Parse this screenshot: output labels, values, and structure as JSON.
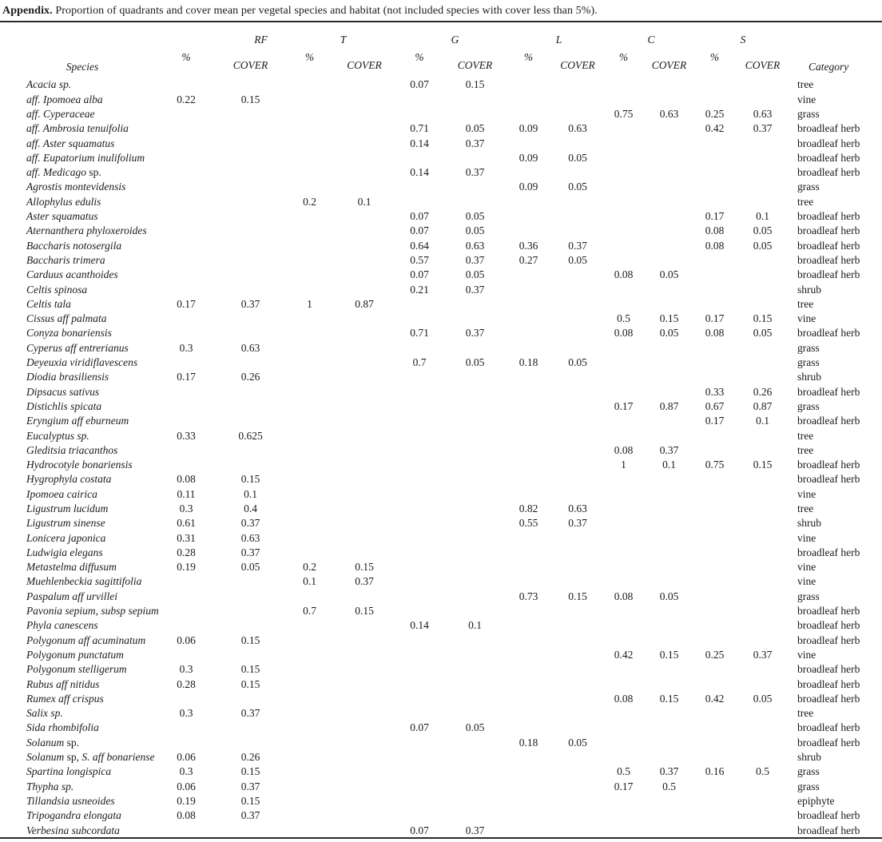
{
  "title": {
    "label": "Appendix.",
    "text": "Proportion of quadrants and cover mean per vegetal species and habitat (not included species with cover less than 5%)."
  },
  "table": {
    "species_header": "Species",
    "category_header": "Category",
    "groups": [
      "RF",
      "T",
      "G",
      "L",
      "C",
      "S"
    ],
    "subheaders": {
      "percent": "%",
      "cover": "COVER"
    },
    "rows": [
      {
        "species": [
          [
            "Acacia sp.",
            "i"
          ]
        ],
        "values": [
          "",
          "",
          "",
          "",
          "0.07",
          "0.15",
          "",
          "",
          "",
          "",
          "",
          ""
        ],
        "category": "tree"
      },
      {
        "species": [
          [
            "aff. Ipomoea alba",
            "i"
          ]
        ],
        "values": [
          "0.22",
          "0.15",
          "",
          "",
          "",
          "",
          "",
          "",
          "",
          "",
          "",
          ""
        ],
        "category": "vine"
      },
      {
        "species": [
          [
            "aff. Cyperaceae",
            "i"
          ]
        ],
        "values": [
          "",
          "",
          "",
          "",
          "",
          "",
          "",
          "",
          "0.75",
          "0.63",
          "0.25",
          "0.63"
        ],
        "category": "grass"
      },
      {
        "species": [
          [
            "aff. Ambrosia tenuifolia",
            "i"
          ]
        ],
        "values": [
          "",
          "",
          "",
          "",
          "0.71",
          "0.05",
          "0.09",
          "0.63",
          "",
          "",
          "0.42",
          "0.37"
        ],
        "category": "broadleaf herb"
      },
      {
        "species": [
          [
            "aff. Aster squamatus",
            "i"
          ]
        ],
        "values": [
          "",
          "",
          "",
          "",
          "0.14",
          "0.37",
          "",
          "",
          "",
          "",
          "",
          ""
        ],
        "category": "broadleaf herb"
      },
      {
        "species": [
          [
            "aff. Eupatorium inulifolium",
            "i"
          ]
        ],
        "values": [
          "",
          "",
          "",
          "",
          "",
          "",
          "0.09",
          "0.05",
          "",
          "",
          "",
          ""
        ],
        "category": "broadleaf herb"
      },
      {
        "species": [
          [
            "aff. Medicago ",
            "i"
          ],
          [
            "sp.",
            "r"
          ]
        ],
        "values": [
          "",
          "",
          "",
          "",
          "0.14",
          "0.37",
          "",
          "",
          "",
          "",
          "",
          ""
        ],
        "category": "broadleaf herb"
      },
      {
        "species": [
          [
            "Agrostis montevidensis",
            "i"
          ]
        ],
        "values": [
          "",
          "",
          "",
          "",
          "",
          "",
          "0.09",
          "0.05",
          "",
          "",
          "",
          ""
        ],
        "category": "grass"
      },
      {
        "species": [
          [
            "Allophylus edulis",
            "i"
          ]
        ],
        "values": [
          "",
          "",
          "0.2",
          "0.1",
          "",
          "",
          "",
          "",
          "",
          "",
          "",
          ""
        ],
        "category": "tree"
      },
      {
        "species": [
          [
            "Aster squamatus",
            "i"
          ]
        ],
        "values": [
          "",
          "",
          "",
          "",
          "0.07",
          "0.05",
          "",
          "",
          "",
          "",
          "0.17",
          "0.1"
        ],
        "category": "broadleaf herb"
      },
      {
        "species": [
          [
            "Aternanthera phyloxeroides",
            "i"
          ]
        ],
        "values": [
          "",
          "",
          "",
          "",
          "0.07",
          "0.05",
          "",
          "",
          "",
          "",
          "0.08",
          "0.05"
        ],
        "category": "broadleaf herb"
      },
      {
        "species": [
          [
            "Baccharis notosergila",
            "i"
          ]
        ],
        "values": [
          "",
          "",
          "",
          "",
          "0.64",
          "0.63",
          "0.36",
          "0.37",
          "",
          "",
          "0.08",
          "0.05"
        ],
        "category": "broadleaf herb"
      },
      {
        "species": [
          [
            "Baccharis trimera",
            "i"
          ]
        ],
        "values": [
          "",
          "",
          "",
          "",
          "0.57",
          "0.37",
          "0.27",
          "0.05",
          "",
          "",
          "",
          ""
        ],
        "category": "broadleaf herb"
      },
      {
        "species": [
          [
            "Carduus acanthoides",
            "i"
          ]
        ],
        "values": [
          "",
          "",
          "",
          "",
          "0.07",
          "0.05",
          "",
          "",
          "0.08",
          "0.05",
          "",
          ""
        ],
        "category": "broadleaf herb"
      },
      {
        "species": [
          [
            "Celtis spinosa",
            "i"
          ]
        ],
        "values": [
          "",
          "",
          "",
          "",
          "0.21",
          "0.37",
          "",
          "",
          "",
          "",
          "",
          ""
        ],
        "category": "shrub"
      },
      {
        "species": [
          [
            "Celtis tala",
            "i"
          ]
        ],
        "values": [
          "0.17",
          "0.37",
          "1",
          "0.87",
          "",
          "",
          "",
          "",
          "",
          "",
          "",
          ""
        ],
        "category": "tree"
      },
      {
        "species": [
          [
            "Cissus aff palmata",
            "i"
          ]
        ],
        "values": [
          "",
          "",
          "",
          "",
          "",
          "",
          "",
          "",
          "0.5",
          "0.15",
          "0.17",
          "0.15"
        ],
        "category": "vine"
      },
      {
        "species": [
          [
            "Conyza bonariensis",
            "i"
          ]
        ],
        "values": [
          "",
          "",
          "",
          "",
          "0.71",
          "0.37",
          "",
          "",
          "0.08",
          "0.05",
          "0.08",
          "0.05"
        ],
        "category": "broadleaf herb"
      },
      {
        "species": [
          [
            "Cyperus aff entrerianus",
            "i"
          ]
        ],
        "values": [
          "0.3",
          "0.63",
          "",
          "",
          "",
          "",
          "",
          "",
          "",
          "",
          "",
          ""
        ],
        "category": "grass"
      },
      {
        "species": [
          [
            "Deyeuxia viridiflavescens",
            "i"
          ]
        ],
        "values": [
          "",
          "",
          "",
          "",
          "0.7",
          "0.05",
          "0.18",
          "0.05",
          "",
          "",
          "",
          ""
        ],
        "category": "grass"
      },
      {
        "species": [
          [
            "Diodia brasiliensis",
            "i"
          ]
        ],
        "values": [
          "0.17",
          "0.26",
          "",
          "",
          "",
          "",
          "",
          "",
          "",
          "",
          "",
          ""
        ],
        "category": "shrub"
      },
      {
        "species": [
          [
            "Dipsacus sativus",
            "i"
          ]
        ],
        "values": [
          "",
          "",
          "",
          "",
          "",
          "",
          "",
          "",
          "",
          "",
          "0.33",
          "0.26"
        ],
        "category": "broadleaf herb"
      },
      {
        "species": [
          [
            "Distichlis spicata",
            "i"
          ]
        ],
        "values": [
          "",
          "",
          "",
          "",
          "",
          "",
          "",
          "",
          "0.17",
          "0.87",
          "0.67",
          "0.87"
        ],
        "category": "grass"
      },
      {
        "species": [
          [
            "Eryngium aff eburneum",
            "i"
          ]
        ],
        "values": [
          "",
          "",
          "",
          "",
          "",
          "",
          "",
          "",
          "",
          "",
          "0.17",
          "0.1"
        ],
        "category": "broadleaf herb"
      },
      {
        "species": [
          [
            "Eucalyptus sp.",
            "i"
          ]
        ],
        "values": [
          "0.33",
          "0.625",
          "",
          "",
          "",
          "",
          "",
          "",
          "",
          "",
          "",
          ""
        ],
        "category": "tree"
      },
      {
        "species": [
          [
            "Gleditsia triacanthos",
            "i"
          ]
        ],
        "values": [
          "",
          "",
          "",
          "",
          "",
          "",
          "",
          "",
          "0.08",
          "0.37",
          "",
          ""
        ],
        "category": "tree"
      },
      {
        "species": [
          [
            "Hydrocotyle bonariensis",
            "i"
          ]
        ],
        "values": [
          "",
          "",
          "",
          "",
          "",
          "",
          "",
          "",
          "1",
          "0.1",
          "0.75",
          "0.15"
        ],
        "category": "broadleaf herb"
      },
      {
        "species": [
          [
            "Hygrophyla costata",
            "i"
          ]
        ],
        "values": [
          "0.08",
          "0.15",
          "",
          "",
          "",
          "",
          "",
          "",
          "",
          "",
          "",
          ""
        ],
        "category": "broadleaf herb"
      },
      {
        "species": [
          [
            "Ipomoea cairica",
            "i"
          ]
        ],
        "values": [
          "0.11",
          "0.1",
          "",
          "",
          "",
          "",
          "",
          "",
          "",
          "",
          "",
          ""
        ],
        "category": "vine"
      },
      {
        "species": [
          [
            "Ligustrum lucidum",
            "i"
          ]
        ],
        "values": [
          "0.3",
          "0.4",
          "",
          "",
          "",
          "",
          "0.82",
          "0.63",
          "",
          "",
          "",
          ""
        ],
        "category": "tree"
      },
      {
        "species": [
          [
            "Ligustrum sinense",
            "i"
          ]
        ],
        "values": [
          "0.61",
          "0.37",
          "",
          "",
          "",
          "",
          "0.55",
          "0.37",
          "",
          "",
          "",
          ""
        ],
        "category": "shrub"
      },
      {
        "species": [
          [
            "Lonicera japonica",
            "i"
          ]
        ],
        "values": [
          "0.31",
          "0.63",
          "",
          "",
          "",
          "",
          "",
          "",
          "",
          "",
          "",
          ""
        ],
        "category": "vine"
      },
      {
        "species": [
          [
            "Ludwigia elegans",
            "i"
          ]
        ],
        "values": [
          "0.28",
          "0.37",
          "",
          "",
          "",
          "",
          "",
          "",
          "",
          "",
          "",
          ""
        ],
        "category": "broadleaf herb"
      },
      {
        "species": [
          [
            "Metastelma diffusum",
            "i"
          ]
        ],
        "values": [
          "0.19",
          "0.05",
          "0.2",
          "0.15",
          "",
          "",
          "",
          "",
          "",
          "",
          "",
          ""
        ],
        "category": "vine"
      },
      {
        "species": [
          [
            "Muehlenbeckia sagittifolia",
            "i"
          ]
        ],
        "values": [
          "",
          "",
          "0.1",
          "0.37",
          "",
          "",
          "",
          "",
          "",
          "",
          "",
          ""
        ],
        "category": "vine"
      },
      {
        "species": [
          [
            "Paspalum aff urvillei",
            "i"
          ]
        ],
        "values": [
          "",
          "",
          "",
          "",
          "",
          "",
          "0.73",
          "0.15",
          "0.08",
          "0.05",
          "",
          ""
        ],
        "category": "grass"
      },
      {
        "species": [
          [
            "Pavonia sepium, subsp sepium",
            "i"
          ]
        ],
        "values": [
          "",
          "",
          "0.7",
          "0.15",
          "",
          "",
          "",
          "",
          "",
          "",
          "",
          ""
        ],
        "category": "broadleaf herb"
      },
      {
        "species": [
          [
            "Phyla canescens",
            "i"
          ]
        ],
        "values": [
          "",
          "",
          "",
          "",
          "0.14",
          "0.1",
          "",
          "",
          "",
          "",
          "",
          ""
        ],
        "category": "broadleaf herb"
      },
      {
        "species": [
          [
            "Polygonum aff acuminatum",
            "i"
          ]
        ],
        "values": [
          "0.06",
          "0.15",
          "",
          "",
          "",
          "",
          "",
          "",
          "",
          "",
          "",
          ""
        ],
        "category": "broadleaf herb"
      },
      {
        "species": [
          [
            "Polygonum punctatum",
            "i"
          ]
        ],
        "values": [
          "",
          "",
          "",
          "",
          "",
          "",
          "",
          "",
          "0.42",
          "0.15",
          "0.25",
          "0.37"
        ],
        "category": "vine"
      },
      {
        "species": [
          [
            "Polygonum stelligerum",
            "i"
          ]
        ],
        "values": [
          "0.3",
          "0.15",
          "",
          "",
          "",
          "",
          "",
          "",
          "",
          "",
          "",
          ""
        ],
        "category": "broadleaf herb"
      },
      {
        "species": [
          [
            "Rubus aff nitidus",
            "i"
          ]
        ],
        "values": [
          "0.28",
          "0.15",
          "",
          "",
          "",
          "",
          "",
          "",
          "",
          "",
          "",
          ""
        ],
        "category": "broadleaf herb"
      },
      {
        "species": [
          [
            "Rumex aff crispus",
            "i"
          ]
        ],
        "values": [
          "",
          "",
          "",
          "",
          "",
          "",
          "",
          "",
          "0.08",
          "0.15",
          "0.42",
          "0.05"
        ],
        "category": "broadleaf herb"
      },
      {
        "species": [
          [
            "Salix sp.",
            "i"
          ]
        ],
        "values": [
          "0.3",
          "0.37",
          "",
          "",
          "",
          "",
          "",
          "",
          "",
          "",
          "",
          ""
        ],
        "category": "tree"
      },
      {
        "species": [
          [
            "Sida rhombifolia",
            "i"
          ]
        ],
        "values": [
          "",
          "",
          "",
          "",
          "0.07",
          "0.05",
          "",
          "",
          "",
          "",
          "",
          ""
        ],
        "category": "broadleaf herb"
      },
      {
        "species": [
          [
            "Solanum ",
            "i"
          ],
          [
            "sp.",
            "r"
          ]
        ],
        "values": [
          "",
          "",
          "",
          "",
          "",
          "",
          "0.18",
          "0.05",
          "",
          "",
          "",
          ""
        ],
        "category": "broadleaf herb"
      },
      {
        "species": [
          [
            "Solanum ",
            "i"
          ],
          [
            "sp, ",
            "r"
          ],
          [
            "S. aff bonariense",
            "i"
          ]
        ],
        "values": [
          "0.06",
          "0.26",
          "",
          "",
          "",
          "",
          "",
          "",
          "",
          "",
          "",
          ""
        ],
        "category": "shrub"
      },
      {
        "species": [
          [
            "Spartina longispica",
            "i"
          ]
        ],
        "values": [
          "0.3",
          "0.15",
          "",
          "",
          "",
          "",
          "",
          "",
          "0.5",
          "0.37",
          "0.16",
          "0.5"
        ],
        "category": "grass"
      },
      {
        "species": [
          [
            "Thypha sp.",
            "i"
          ]
        ],
        "values": [
          "0.06",
          "0.37",
          "",
          "",
          "",
          "",
          "",
          "",
          "0.17",
          "0.5",
          "",
          ""
        ],
        "category": "grass"
      },
      {
        "species": [
          [
            "Tillandsia usneoides",
            "i"
          ]
        ],
        "values": [
          "0.19",
          "0.15",
          "",
          "",
          "",
          "",
          "",
          "",
          "",
          "",
          "",
          ""
        ],
        "category": "epiphyte"
      },
      {
        "species": [
          [
            "Tripogandra elongata",
            "i"
          ]
        ],
        "values": [
          "0.08",
          "0.37",
          "",
          "",
          "",
          "",
          "",
          "",
          "",
          "",
          "",
          ""
        ],
        "category": "broadleaf herb"
      },
      {
        "species": [
          [
            "Verbesina subcordata",
            "i"
          ]
        ],
        "values": [
          "",
          "",
          "",
          "",
          "0.07",
          "0.37",
          "",
          "",
          "",
          "",
          "",
          ""
        ],
        "category": "broadleaf herb"
      }
    ]
  }
}
